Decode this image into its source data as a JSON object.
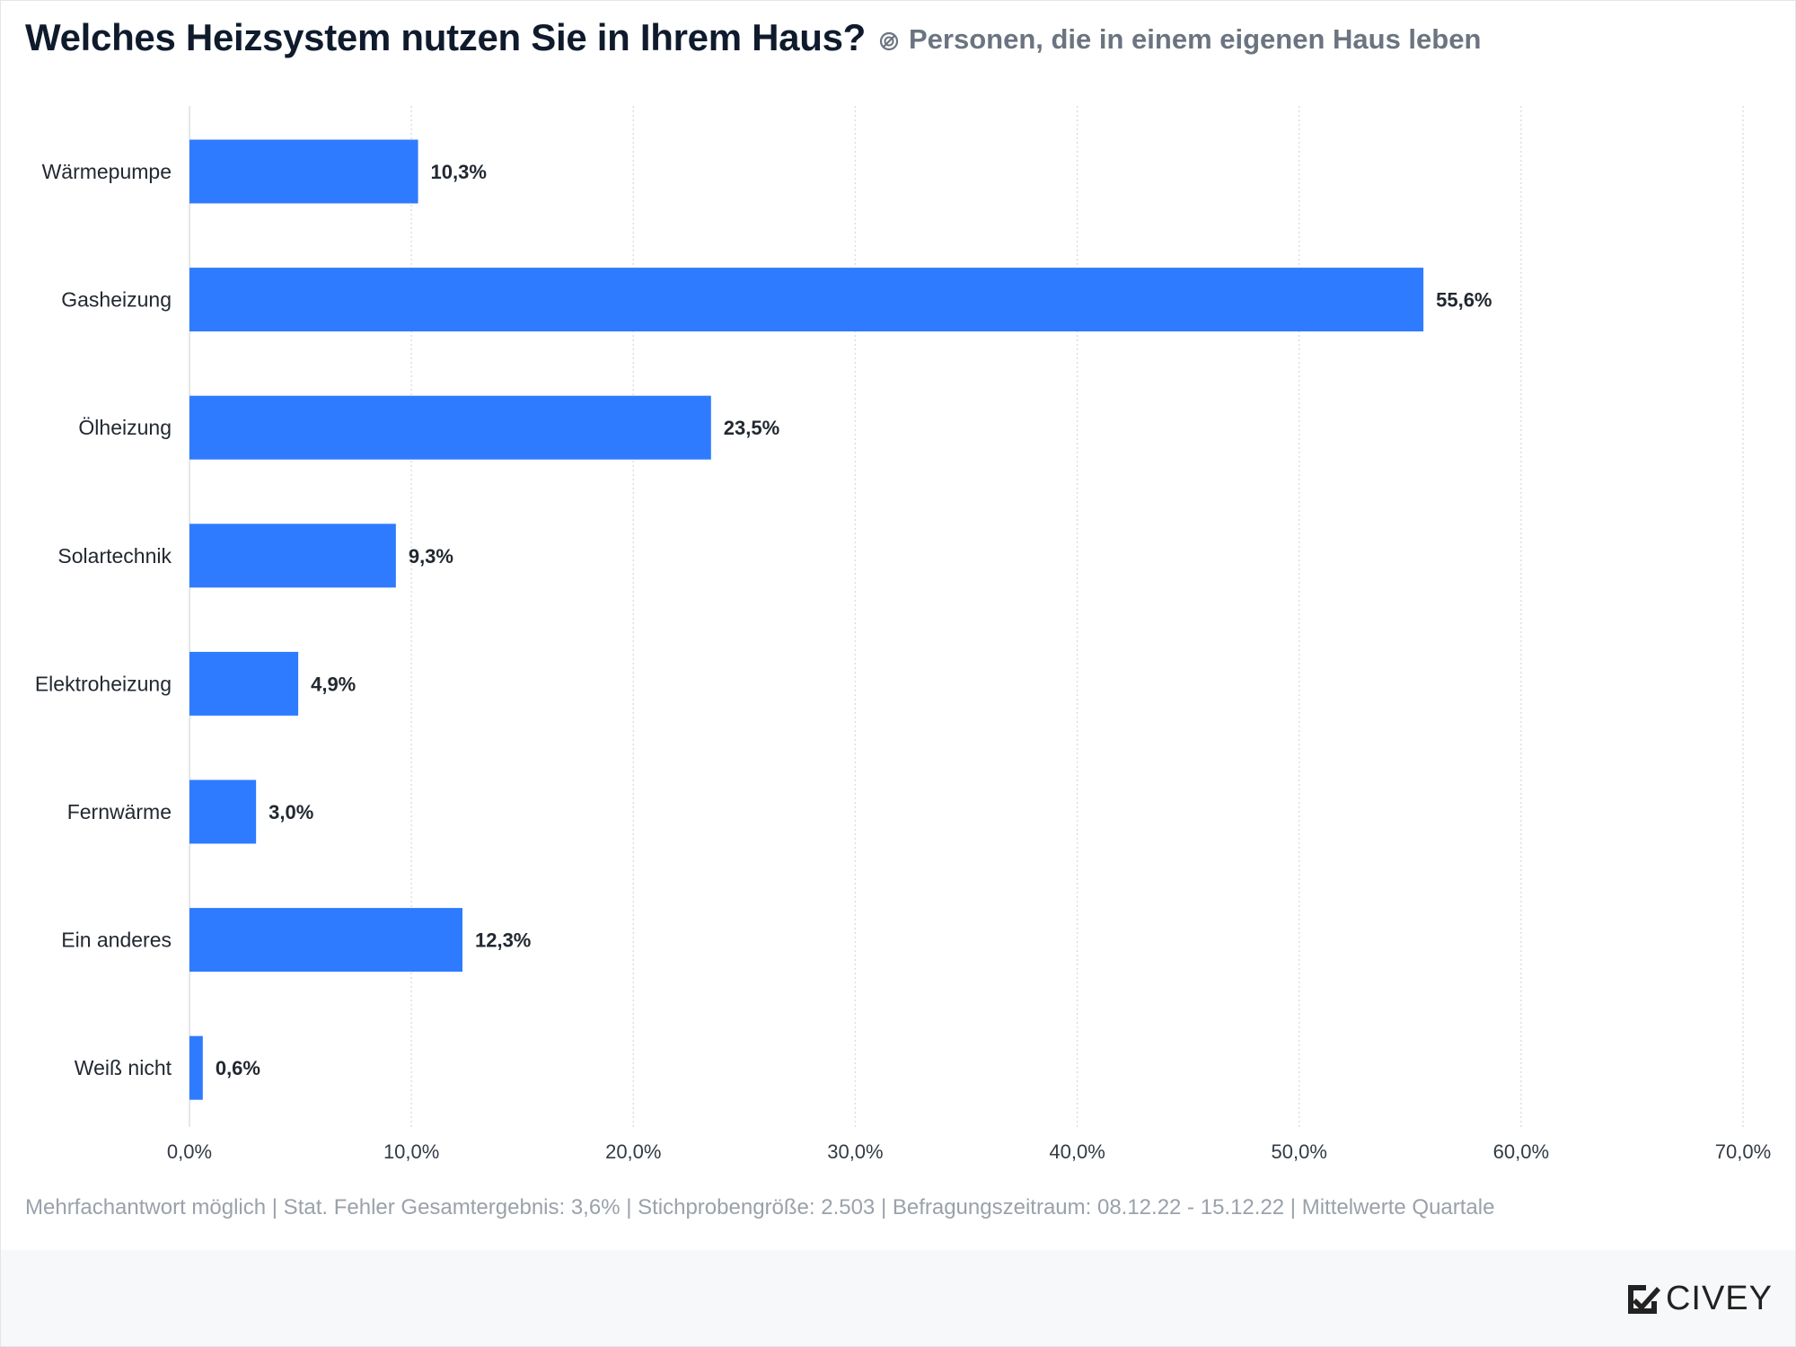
{
  "header": {
    "title": "Welches Heizsystem nutzen Sie in Ihrem Haus?",
    "subtitle": "Personen, die in einem eigenen Haus leben"
  },
  "footnote": "Mehrfachantwort möglich | Stat. Fehler Gesamtergebnis: 3,6% | Stichprobengröße: 2.503 | Befragungszeitraum: 08.12.22 - 15.12.22 | Mittelwerte Quartale",
  "brand": {
    "name": "CIVEY"
  },
  "colors": {
    "bar": "#2f7bff",
    "grid": "#dcdfe3",
    "label": "#222831",
    "axis_text": "#333a44"
  },
  "icons": {
    "subtitle": "filter-icon",
    "logo": "civey-check-icon"
  },
  "chart_data": {
    "type": "bar",
    "orientation": "horizontal",
    "categories": [
      "Wärmepumpe",
      "Gasheizung",
      "Ölheizung",
      "Solartechnik",
      "Elektroheizung",
      "Fernwärme",
      "Ein anderes",
      "Weiß nicht"
    ],
    "values": [
      10.3,
      55.6,
      23.5,
      9.3,
      4.9,
      3.0,
      12.3,
      0.6
    ],
    "value_labels": [
      "10,3%",
      "55,6%",
      "23,5%",
      "9,3%",
      "4,9%",
      "3,0%",
      "12,3%",
      "0,6%"
    ],
    "xlim": [
      0,
      70
    ],
    "x_ticks": [
      0,
      10,
      20,
      30,
      40,
      50,
      60,
      70
    ],
    "x_tick_labels": [
      "0,0%",
      "10,0%",
      "20,0%",
      "30,0%",
      "40,0%",
      "50,0%",
      "60,0%",
      "70,0%"
    ],
    "grid": true
  }
}
